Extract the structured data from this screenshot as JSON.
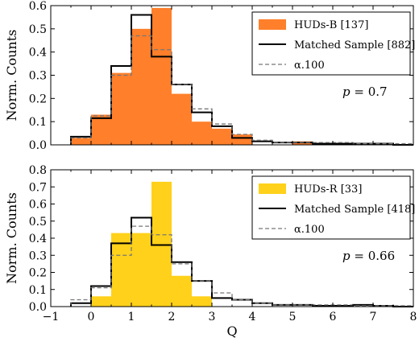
{
  "chart_data": [
    {
      "type": "bar",
      "panel": "top",
      "xlim": [
        -1,
        8
      ],
      "ylim": [
        0,
        0.6
      ],
      "yticks": [
        0.0,
        0.1,
        0.2,
        0.3,
        0.4,
        0.5,
        0.6
      ],
      "ytick_labels": [
        "0.0",
        "0.1",
        "0.2",
        "0.3",
        "0.4",
        "0.5",
        "0.6"
      ],
      "ylabel": "Norm. Counts",
      "xlabel": "",
      "bin_edges": [
        -0.5,
        0.0,
        0.5,
        1.0,
        1.5,
        2.0,
        2.5,
        3.0,
        3.5,
        4.0,
        4.5,
        5.0,
        5.5,
        6.0,
        6.5,
        7.0,
        7.5,
        8.0
      ],
      "series": [
        {
          "name": "HUDs-B [137]",
          "style": "filled",
          "color": "#ff7f2a",
          "values": [
            0.03,
            0.13,
            0.31,
            0.5,
            0.59,
            0.22,
            0.1,
            0.07,
            0.045,
            0.0,
            0.0,
            0.015,
            0.0,
            0.0,
            0.0,
            0.0,
            0.0
          ]
        },
        {
          "name": "Matched Sample [882]",
          "style": "step-solid",
          "color": "#000000",
          "values": [
            0.035,
            0.115,
            0.34,
            0.56,
            0.38,
            0.26,
            0.14,
            0.08,
            0.03,
            0.015,
            0.01,
            0.01,
            0.005,
            0.005,
            0.005,
            0.005,
            0.0
          ]
        },
        {
          "name": "α.100",
          "style": "step-dashed",
          "color": "#777777",
          "values": [
            0.03,
            0.125,
            0.3,
            0.47,
            0.41,
            0.26,
            0.155,
            0.09,
            0.045,
            0.02,
            0.01,
            0.01,
            0.01,
            0.01,
            0.005,
            0.005,
            0.005
          ]
        }
      ],
      "legend_position": "top-right",
      "annotation": {
        "var": "p",
        "text": " = 0.7"
      }
    },
    {
      "type": "bar",
      "panel": "bottom",
      "xlim": [
        -1,
        8
      ],
      "ylim": [
        0,
        0.8
      ],
      "yticks": [
        0.0,
        0.1,
        0.2,
        0.3,
        0.4,
        0.5,
        0.6,
        0.7,
        0.8
      ],
      "ytick_labels": [
        "0.0",
        "0.1",
        "0.2",
        "0.3",
        "0.4",
        "0.5",
        "0.6",
        "0.7",
        "0.8"
      ],
      "xticks": [
        -1,
        0,
        1,
        2,
        3,
        4,
        5,
        6,
        7,
        8
      ],
      "xtick_labels": [
        "−1",
        "0",
        "1",
        "2",
        "3",
        "4",
        "5",
        "6",
        "7",
        "8"
      ],
      "ylabel": "Norm. Counts",
      "xlabel": "Q",
      "bin_edges": [
        -0.5,
        0.0,
        0.5,
        1.0,
        1.5,
        2.0,
        2.5,
        3.0,
        3.5,
        4.0,
        4.5,
        5.0,
        5.5,
        6.0,
        6.5,
        7.0,
        7.5,
        8.0
      ],
      "series": [
        {
          "name": "HUDs-R [33]",
          "style": "filled",
          "color": "#ffd11a",
          "values": [
            0.0,
            0.06,
            0.43,
            0.43,
            0.73,
            0.18,
            0.06,
            0.0,
            0.0,
            0.0,
            0.0,
            0.0,
            0.0,
            0.0,
            0.0,
            0.0,
            0.0
          ]
        },
        {
          "name": "Matched Sample [418]",
          "style": "step-solid",
          "color": "#000000",
          "values": [
            0.02,
            0.12,
            0.37,
            0.52,
            0.36,
            0.26,
            0.15,
            0.05,
            0.04,
            0.02,
            0.01,
            0.01,
            0.005,
            0.005,
            0.01,
            0.005,
            0.0
          ]
        },
        {
          "name": "α.100",
          "style": "step-dashed",
          "color": "#777777",
          "values": [
            0.04,
            0.11,
            0.3,
            0.47,
            0.42,
            0.25,
            0.15,
            0.08,
            0.04,
            0.02,
            0.01,
            0.01,
            0.01,
            0.01,
            0.005,
            0.005,
            0.005
          ]
        }
      ],
      "legend_position": "top-right",
      "annotation": {
        "var": "p",
        "text": " = 0.66"
      }
    }
  ]
}
